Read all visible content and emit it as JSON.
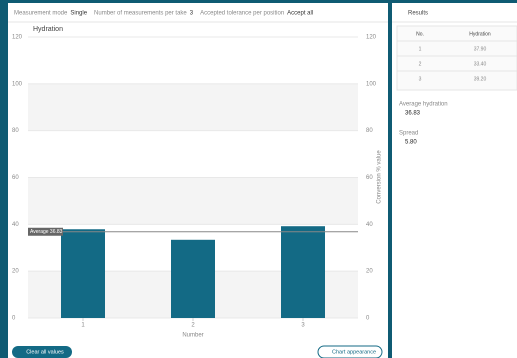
{
  "header": {
    "items": [
      {
        "label": "Measurement mode",
        "value": "Single"
      },
      {
        "label": "Number of measurements per take",
        "value": "3"
      },
      {
        "label": "Accepted tolerance per position",
        "value": "Accept all"
      }
    ]
  },
  "chart": {
    "type": "bar",
    "title": "Hydration",
    "x_label": "Number",
    "y2_label": "Conversion % value",
    "categories": [
      "1",
      "2",
      "3"
    ],
    "values": [
      37.9,
      33.4,
      39.2
    ],
    "color": "#136a85",
    "ylim": [
      0,
      120
    ],
    "yticks": [
      0,
      20,
      40,
      60,
      80,
      100,
      120
    ],
    "average": {
      "value": 36.83,
      "label": "Average 36.83"
    }
  },
  "results": {
    "title": "Results",
    "columns": [
      "No.",
      "Hydration"
    ],
    "rows": [
      [
        "1",
        "37.90"
      ],
      [
        "2",
        "33.40"
      ],
      [
        "3",
        "39.20"
      ]
    ],
    "average_label": "Average hydration",
    "average": "36.83",
    "spread_label": "Spread",
    "spread": "5.80"
  },
  "buttons": {
    "clear": "Clear all values",
    "appearance": "Chart appearance"
  }
}
